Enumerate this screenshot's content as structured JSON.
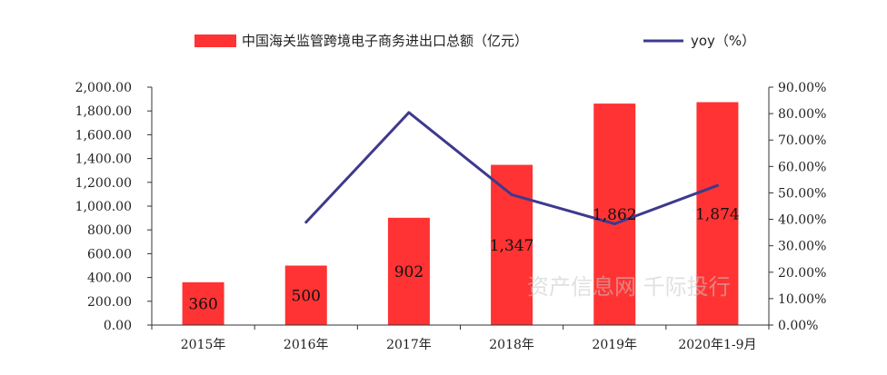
{
  "chart_data": {
    "type": "bar",
    "categories": [
      "2015年",
      "2016年",
      "2017年",
      "2018年",
      "2019年",
      "2020年1-9月"
    ],
    "series": [
      {
        "name": "中国海关监管跨境电子商务进出口总额（亿元）",
        "type": "bar",
        "axis": "left",
        "values": [
          360,
          500,
          902,
          1347,
          1862,
          1874
        ],
        "labels": [
          "360",
          "500",
          "902",
          "1,347",
          "1,862",
          "1,874"
        ],
        "color": "#ff3333"
      },
      {
        "name": "yoy（%）",
        "type": "line",
        "axis": "right",
        "values": [
          null,
          38.9,
          80.4,
          49.3,
          38.3,
          52.8
        ],
        "color": "#3d3a8c"
      }
    ],
    "y_left": {
      "ylim": [
        0,
        2000
      ],
      "ticks": [
        "0.00",
        "200.00",
        "400.00",
        "600.00",
        "800.00",
        "1,000.00",
        "1,200.00",
        "1,400.00",
        "1,600.00",
        "1,800.00",
        "2,000.00"
      ]
    },
    "y_right": {
      "ylim": [
        0,
        90
      ],
      "ticks": [
        "0.00%",
        "10.00%",
        "20.00%",
        "30.00%",
        "40.00%",
        "50.00%",
        "60.00%",
        "70.00%",
        "80.00%",
        "90.00%"
      ]
    },
    "legend_position": "top",
    "grid": false
  },
  "watermark": "资产信息网 千际投行"
}
